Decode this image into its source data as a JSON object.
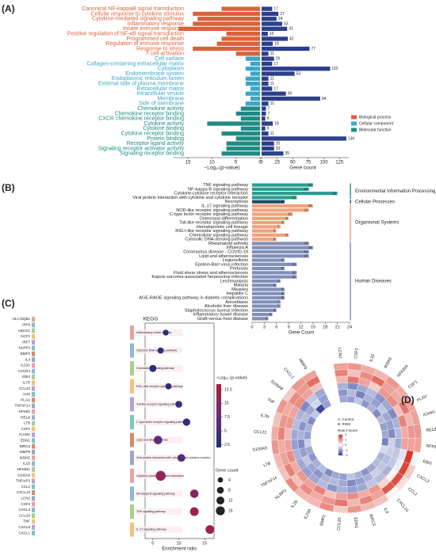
{
  "chart_data": [
    {
      "type": "butterfly-bar",
      "panel_label": "(A)",
      "categories": [
        "Canonical NF-kappaB signal transduction",
        "Cellular response to cytokine stimulus",
        "Cytokine-mediated signaling pathway",
        "Inflammatory response",
        "Innate immune response",
        "Positive regulation of NF-κB signal transduction",
        "Programmed cell death",
        "Regulation of immune response",
        "Response to stress",
        "T cell activation",
        "Cell surface",
        "Collagen-containing extracellular matrix",
        "Cytoplasm",
        "Endomembrane system",
        "Endoplasmic reticulum lumen",
        "External side of plasma membrane",
        "Extracellular matrix",
        "Intracellular vesicle",
        "Membrane",
        "Side of membrane",
        "Chemokine activity",
        "Chemokine receptor binding",
        "CXCR chemokine receptor binding",
        "Cytokine activity",
        "Cytokine binding",
        "Cytokine receptor binding",
        "Protein binding",
        "Receptor ligand activity",
        "Signaling receptor activator activity",
        "Signaling receptor binding"
      ],
      "group": [
        0,
        0,
        0,
        0,
        0,
        0,
        0,
        0,
        0,
        0,
        1,
        1,
        1,
        1,
        1,
        1,
        1,
        1,
        1,
        1,
        2,
        2,
        2,
        2,
        2,
        2,
        2,
        2,
        2,
        2
      ],
      "groups": [
        {
          "name": "Biological process",
          "color": "#d9623b"
        },
        {
          "name": "Cellular component",
          "color": "#3aa6c9"
        },
        {
          "name": "Molecular function",
          "color": "#1f8b82"
        }
      ],
      "series": [
        {
          "values": [
            8,
            14,
            13,
            14,
            17,
            7,
            8,
            9,
            14,
            5,
            3,
            2,
            3,
            2,
            3,
            3,
            2,
            3,
            2,
            3,
            4,
            5,
            4,
            11,
            4,
            8,
            5,
            7,
            7,
            8
          ]
        },
        {
          "color": "#2b3f8a",
          "values": [
            17,
            27,
            24,
            33,
            41,
            10,
            42,
            18,
            77,
            11,
            20,
            17,
            110,
            53,
            11,
            11,
            17,
            39,
            94,
            11,
            7,
            7,
            6,
            18,
            6,
            11,
            136,
            20,
            20,
            35
          ]
        }
      ],
      "xlim": [
        18,
        0
      ],
      "xticks": [
        15,
        10,
        5,
        0
      ],
      "xlabel": "−Log₁₀(p-value)",
      "x2lim": [
        0,
        140
      ],
      "x2ticks": [
        0,
        25,
        50,
        75,
        100,
        125
      ],
      "x2label": "Gene count"
    },
    {
      "type": "bar",
      "panel_label": "(B)",
      "categories": [
        "TNF signaling pathway",
        "NF-kappa B signaling pathway",
        "Cytokine-cytokine receptor interaction",
        "Viral protein interaction with cytokine and cytokine receptor",
        "Necroptosis",
        "IL-17 signaling pathway",
        "NOD-like receptor signaling pathway",
        "C-type lectin receptor signaling pathway",
        "Osteoclast differentiation",
        "Toll-like receptor signaling pathway",
        "Hematopoietic cell lineage",
        "RIG-I-like receptor signaling pathway",
        "Chemokine signaling pathway",
        "Cytosolic DNA-sensing pathway",
        "Rheumatoid arthritis",
        "Influenza A",
        "Coronavirus disease - COVID-19",
        "Lipid and atherosclerosis",
        "Legionellosis",
        "Epstein-Barr virus infection",
        "Pertussis",
        "Fluid shear stress and atherosclerosis",
        "Kaposi sarcoma-associated herpesvirus infection",
        "Leishmaniasis",
        "Malaria",
        "Measles",
        "Hepatitis C",
        "AGE-RAGE signaling pathway in diabetic complications",
        "Amoebiasis",
        "Alcoholic liver disease",
        "Staphylococcus aureus infection",
        "Inflammatory bowel disease",
        "Graft-versus-host disease"
      ],
      "values": [
        15,
        14,
        21,
        11,
        8,
        15,
        14,
        10,
        9,
        8,
        7,
        6,
        9,
        6,
        14,
        15,
        14,
        14,
        8,
        11,
        8,
        11,
        11,
        7,
        6,
        8,
        8,
        8,
        7,
        7,
        6,
        5,
        4
      ],
      "group": [
        0,
        0,
        0,
        0,
        1,
        2,
        2,
        2,
        2,
        2,
        2,
        2,
        2,
        2,
        3,
        3,
        3,
        3,
        3,
        3,
        3,
        3,
        3,
        3,
        3,
        3,
        3,
        3,
        3,
        3,
        3,
        3,
        3
      ],
      "groups": [
        {
          "name": "Environmental Information Processing",
          "color": "#2a9d8f"
        },
        {
          "name": "Cellular Processes",
          "color": "#1d4e6b"
        },
        {
          "name": "Organismal Systems",
          "color": "#f2a27d"
        },
        {
          "name": "Human Diseases",
          "color": "#8290b8"
        }
      ],
      "xlim": [
        0,
        24
      ],
      "xticks": [
        0,
        3,
        6,
        9,
        12,
        15,
        18,
        21,
        24
      ],
      "xlabel": "Gene Count"
    },
    {
      "type": "sankey-dot",
      "panel_label": "(C)",
      "title": "KEGG",
      "genes": [
        "HLA-DQB1",
        "IRF9",
        "ABCG1",
        "NCF2",
        "IRF7",
        "NLRP3",
        "BMP2",
        "IL4",
        "IL23A",
        "CXCR4",
        "EBI3",
        "IL7R",
        "CCL22",
        "IL32",
        "PLAU",
        "TNFSF14",
        "NFKB2",
        "RELB",
        "LTB",
        "CSF1",
        "ICAM1",
        "EDN1",
        "BIRC3",
        "MMP9",
        "IKBKE",
        "IL1B",
        "NFKBIA",
        "S100A8",
        "TNFAIP3",
        "CCL2",
        "CXCL10",
        "LCN2",
        "CSF2",
        "CXCL3",
        "CCL20",
        "TNF",
        "CXCL8",
        "CXCL1"
      ],
      "node_colors": [
        "#e9a3a0",
        "#8fb8d8",
        "#a8d08d",
        "#f3c27a",
        "#b9a3d3",
        "#7fc6c0",
        "#d68b6b",
        "#9aa7c9"
      ],
      "categories": [
        "Inflammatory bowel disease",
        "Cytosolic DNA-sensing pathway",
        "Chemokine signaling pathway",
        "RIG-I-like receptor signaling pathway",
        "Toll-like receptor signaling pathway",
        "C-type lectin receptor signaling pathway",
        "Lipid and atherosclerosis",
        "Viral protein interaction with cytokine and cytokine receptor",
        "Cytokine-cytokine receptor interaction",
        "NF-kappa B signaling pathway",
        "TNF signaling pathway",
        "IL-17 signaling pathway"
      ],
      "x": [
        7.5,
        6.5,
        5,
        8,
        10,
        11.5,
        6,
        10.5,
        6.5,
        13,
        13,
        16
      ],
      "values": [
        3,
        3,
        3,
        3,
        4,
        4,
        7,
        6,
        11,
        10,
        12,
        12
      ],
      "sizes": [
        5,
        6,
        9,
        6,
        8,
        10,
        14,
        11,
        21,
        14,
        15,
        15
      ],
      "xlim": [
        3.5,
        16.8
      ],
      "xticks": [
        5,
        10,
        15
      ],
      "xlabel": "Enrichment ratio",
      "colorbar_title": "−Log₁₀ (p-value)",
      "clim": [
        2,
        13.5
      ],
      "cticks": [
        2.5,
        5,
        7.5,
        10,
        12.5
      ],
      "colormap": [
        "#1f2f7a",
        "#6b2a7a",
        "#b01e3a"
      ],
      "size_title": "Gene count",
      "size_ticks": [
        4,
        8,
        12,
        16
      ]
    },
    {
      "type": "circular-heatmap",
      "panel_label": "(D)",
      "genes": [
        "LCN2",
        "CSF2",
        "IL32",
        "IKBKE",
        "NFKBIA",
        "CSF1",
        "PLAU",
        "ICAM1",
        "RELB",
        "NFKB2",
        "EBI3",
        "CXCL3",
        "CCL2",
        "CXCL10",
        "IL4",
        "BIRC3",
        "EDN1",
        "CCL20",
        "BMP2",
        "IL23A",
        "IL1B",
        "NLRP3",
        "TNFSF14",
        "LTB",
        "S100A9",
        "CCL22",
        "IL7R",
        "TNF",
        "S100A8",
        "CXCL1",
        "MMP9"
      ],
      "values": [
        [
          -0.9,
          -1.1,
          -0.8,
          0.7,
          1.2,
          0.9
        ],
        [
          -1.0,
          -0.7,
          -1.2,
          1.3,
          0.6,
          1.0
        ],
        [
          -0.6,
          -1.3,
          -0.9,
          0.9,
          1.1,
          0.8
        ],
        [
          -1.1,
          -0.8,
          -0.7,
          0.5,
          1.4,
          0.7
        ],
        [
          -0.8,
          -1.0,
          -1.1,
          1.0,
          0.9,
          1.0
        ],
        [
          -1.2,
          -0.6,
          -0.9,
          1.1,
          0.8,
          0.8
        ],
        [
          -0.7,
          -0.9,
          -1.2,
          0.6,
          1.3,
          0.9
        ],
        [
          -1.0,
          -1.0,
          -0.8,
          1.2,
          0.7,
          0.9
        ],
        [
          -0.9,
          -1.2,
          -0.7,
          0.8,
          1.0,
          1.0
        ],
        [
          -1.3,
          -0.5,
          -0.9,
          0.9,
          0.9,
          0.9
        ],
        [
          -0.4,
          -0.5,
          -0.6,
          -0.3,
          1.9,
          -0.1
        ],
        [
          -0.8,
          -0.7,
          -0.6,
          -0.2,
          1.8,
          0.5
        ],
        [
          -0.7,
          -0.6,
          -0.8,
          0.1,
          1.7,
          0.3
        ],
        [
          -0.9,
          -0.5,
          -0.7,
          0.4,
          1.6,
          0.1
        ],
        [
          -1.1,
          -0.8,
          -0.6,
          1.0,
          0.9,
          0.6
        ],
        [
          -0.8,
          -1.0,
          -0.9,
          0.8,
          1.2,
          0.7
        ],
        [
          -0.6,
          -1.2,
          -1.0,
          1.1,
          0.7,
          1.0
        ],
        [
          -1.0,
          -0.9,
          -0.8,
          0.9,
          1.3,
          0.5
        ],
        [
          -0.9,
          -0.7,
          -1.1,
          0.6,
          1.0,
          1.1
        ],
        [
          -1.2,
          -0.8,
          -0.7,
          1.2,
          0.8,
          0.7
        ],
        [
          -0.7,
          -1.1,
          -0.9,
          0.9,
          1.1,
          0.7
        ],
        [
          -0.8,
          -0.9,
          -1.0,
          1.0,
          0.6,
          1.1
        ],
        [
          -1.1,
          -0.6,
          -0.9,
          0.8,
          1.2,
          0.6
        ],
        [
          -0.9,
          -1.0,
          -0.8,
          1.1,
          0.9,
          0.7
        ],
        [
          -0.5,
          -1.2,
          -1.0,
          0.9,
          0.8,
          1.0
        ],
        [
          -1.0,
          -0.8,
          -0.9,
          0.7,
          1.2,
          0.8
        ],
        [
          -0.8,
          -1.1,
          -0.7,
          1.0,
          1.0,
          0.6
        ],
        [
          -1.2,
          -0.7,
          -0.8,
          0.9,
          0.8,
          1.0
        ],
        [
          -0.6,
          -0.9,
          -1.2,
          1.1,
          1.1,
          0.5
        ],
        [
          -1.9,
          -0.4,
          -0.6,
          0.9,
          1.0,
          1.0
        ],
        [
          -1.0,
          -1.0,
          -0.9,
          0.6,
          1.4,
          0.9
        ]
      ],
      "zlim": [
        -2,
        2
      ],
      "zticks": [
        -2,
        -1,
        0,
        1,
        2
      ],
      "colormap": [
        "#2c3e9c",
        "#ffffff",
        "#d7301f"
      ],
      "legend_text": [
        "A: Control",
        "B: RGM"
      ],
      "colorbar_title": "Row z-score"
    }
  ]
}
